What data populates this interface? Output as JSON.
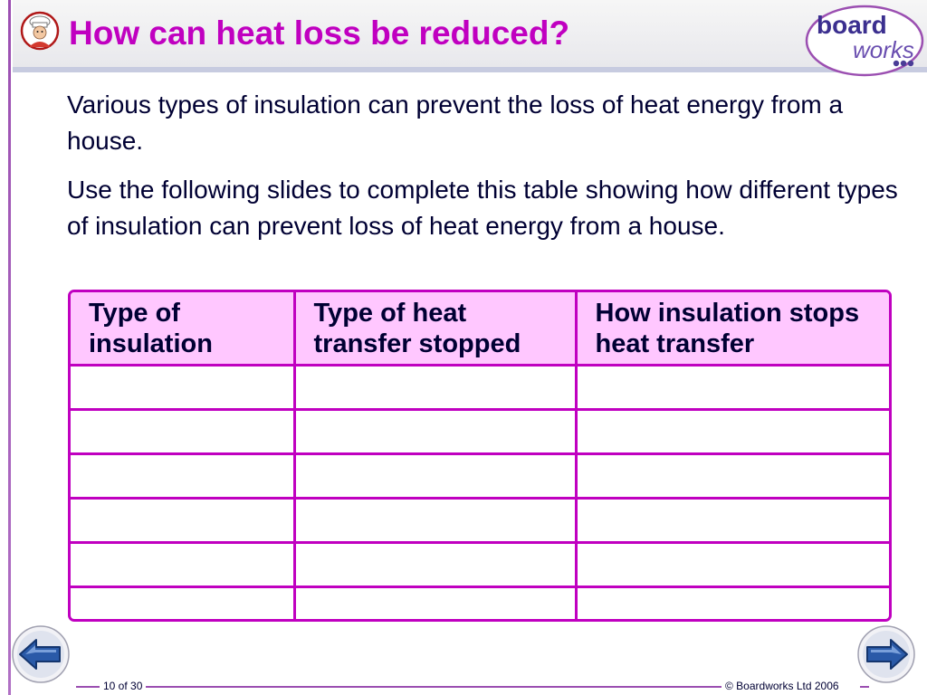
{
  "slide": {
    "title": "How can heat loss be reduced?",
    "logo": {
      "word1": "board",
      "word2": "works"
    },
    "paragraphs": [
      "Various types of insulation can prevent the loss of heat energy from a house.",
      "Use the following slides to complete this table showing how different types of insulation can prevent loss of heat energy from a house."
    ]
  },
  "table": {
    "headers": [
      "Type of insulation",
      "Type of heat transfer stopped",
      "How insulation stops heat transfer"
    ],
    "rows": [
      [
        "",
        "",
        ""
      ],
      [
        "",
        "",
        ""
      ],
      [
        "",
        "",
        ""
      ],
      [
        "",
        "",
        ""
      ],
      [
        "",
        "",
        ""
      ],
      [
        "",
        "",
        ""
      ]
    ]
  },
  "footer": {
    "page_indicator": "10 of 30",
    "copyright": "© Boardworks Ltd 2006"
  },
  "icons": {
    "title_icon": "chef-icon",
    "prev": "arrow-left-icon",
    "next": "arrow-right-icon"
  },
  "colors": {
    "accent": "#c000c0",
    "header_fill": "#ffc7ff",
    "text": "#000033",
    "nav_blue": "#2a5aa8"
  }
}
